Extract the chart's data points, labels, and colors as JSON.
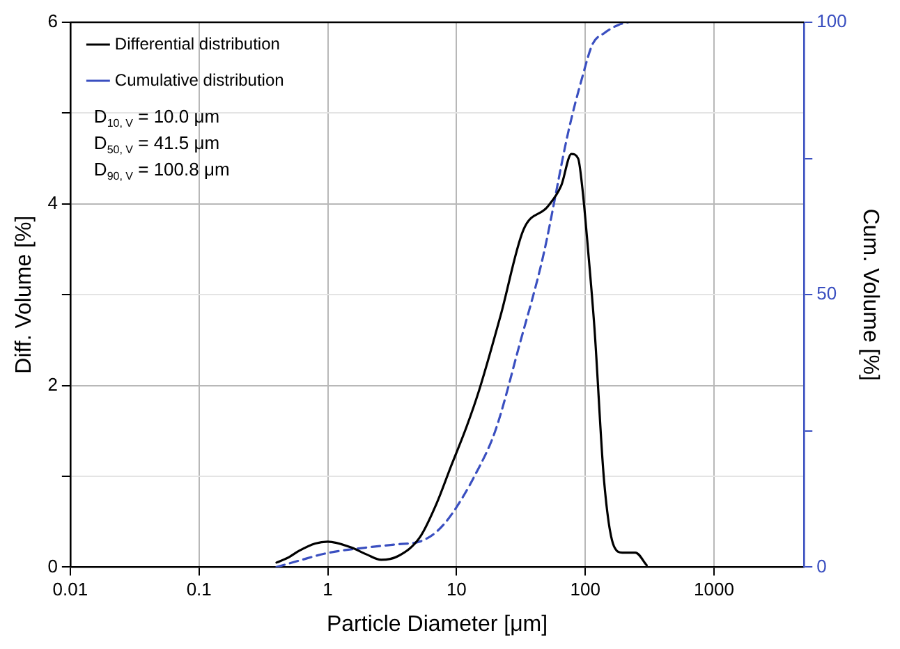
{
  "chart_data": {
    "type": "line",
    "xlabel": "Particle Diameter [μm]",
    "ylabel": "Diff. Volume [%]",
    "y2label": "Cum. Volume [%]",
    "log": "x",
    "grid": true,
    "legend": "top left",
    "marker": "none",
    "xlim": [
      0.01,
      5000
    ],
    "xticks": [
      0.01,
      0.1,
      1,
      10,
      100,
      1000
    ],
    "ylim": [
      0,
      6
    ],
    "yticks": [
      0,
      {
        "value": 1,
        "label": null
      },
      2,
      {
        "value": 3,
        "label": null
      },
      4,
      {
        "value": 5,
        "label": null
      },
      6
    ],
    "y2lim": [
      0,
      100
    ],
    "y2ticks": [
      0,
      {
        "value": 25,
        "label": null
      },
      50,
      {
        "value": 75,
        "label": null
      },
      100
    ],
    "annotations": [
      "D$_{10, V}$ = 10.0 μm",
      "D$_{50, V}$ = 41.5 μm",
      "D$_{90, V}$ = 100.8 μm"
    ],
    "series": [
      {
        "name": "Differential distribution",
        "color": "#000000",
        "line_style": "solid",
        "x": [
          0.4,
          0.5,
          0.6,
          0.8,
          1,
          1.5,
          2,
          2.6,
          3.5,
          5.2,
          7,
          9,
          12,
          15,
          22,
          33,
          51,
          65,
          78,
          88,
          95,
          105,
          118,
          140,
          167,
          194,
          220,
          245,
          300
        ],
        "values": [
          0.05,
          0.11,
          0.18,
          0.26,
          0.28,
          0.22,
          0.14,
          0.08,
          0.12,
          0.33,
          0.7,
          1.1,
          1.55,
          1.95,
          2.77,
          3.71,
          3.97,
          4.2,
          4.55,
          4.5,
          4.17,
          3.5,
          2.62,
          0.95,
          0.23,
          0.16,
          0.16,
          0.16,
          0.02
        ]
      },
      {
        "name": "Cumulative distribution",
        "color": "#3a4fc0",
        "line_style": "dashed",
        "axis": "y2",
        "x": [
          0.4,
          0.6,
          1,
          2,
          3.5,
          5.2,
          7,
          9.3,
          14,
          20,
          31,
          47,
          74,
          95,
          114,
          140,
          180,
          215
        ],
        "values": [
          0,
          1.2,
          2.6,
          3.6,
          4.2,
          4.7,
          6.5,
          9.9,
          17,
          25,
          41,
          57,
          80,
          90,
          96,
          98,
          99.5,
          100
        ]
      }
    ]
  }
}
